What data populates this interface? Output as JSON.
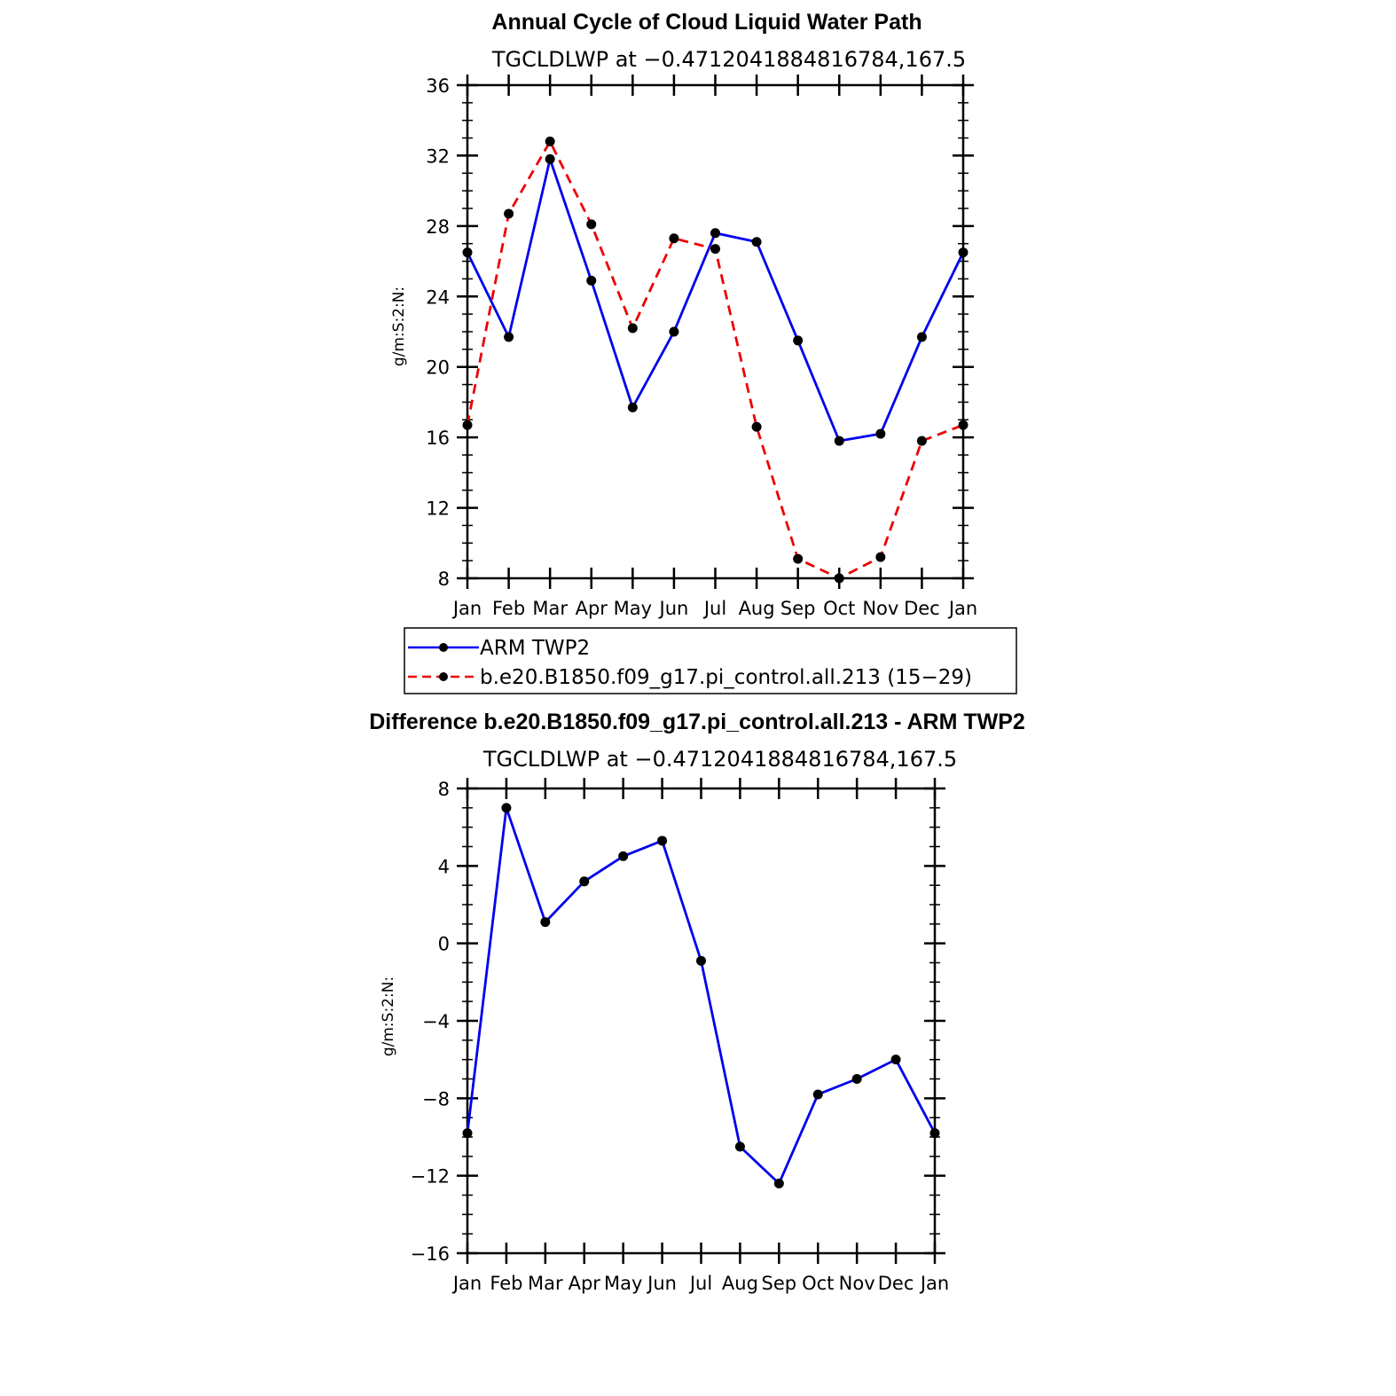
{
  "chart_data": [
    {
      "type": "line",
      "title": "Annual Cycle of Cloud Liquid Water Path",
      "subtitle": "TGCLDLWP at −0.4712041884816784,167.5",
      "ylabel": "g/m:S:2:N:",
      "ylim": [
        8,
        36
      ],
      "yticks": [
        "8",
        "12",
        "16",
        "20",
        "24",
        "28",
        "32",
        "36"
      ],
      "categories": [
        "Jan",
        "Feb",
        "Mar",
        "Apr",
        "May",
        "Jun",
        "Jul",
        "Aug",
        "Sep",
        "Oct",
        "Nov",
        "Dec",
        "Jan"
      ],
      "grid": false,
      "legend_placement": "bottom",
      "series": [
        {
          "name": "ARM TWP2",
          "color": "#0000ee",
          "dash": "solid",
          "values": [
            26.5,
            21.7,
            31.8,
            24.9,
            17.7,
            22.0,
            27.6,
            27.1,
            21.5,
            15.8,
            16.2,
            21.7,
            26.5
          ]
        },
        {
          "name": "b.e20.B1850.f09_g17.pi_control.all.213 (15−29)",
          "color": "#ee0000",
          "dash": "dashed",
          "values": [
            16.7,
            28.7,
            32.8,
            28.1,
            22.2,
            27.3,
            26.7,
            16.6,
            9.1,
            8.0,
            9.2,
            15.8,
            16.7
          ]
        }
      ]
    },
    {
      "type": "line",
      "title": "Difference b.e20.B1850.f09_g17.pi_control.all.213 - ARM TWP2",
      "subtitle": "TGCLDLWP at −0.4712041884816784,167.5",
      "ylabel": "g/m:S:2:N:",
      "ylim": [
        -16,
        8
      ],
      "yticks": [
        "−16",
        "−12",
        "−8",
        "−4",
        "0",
        "4",
        "8"
      ],
      "categories": [
        "Jan",
        "Feb",
        "Mar",
        "Apr",
        "May",
        "Jun",
        "Jul",
        "Aug",
        "Sep",
        "Oct",
        "Nov",
        "Dec",
        "Jan"
      ],
      "grid": false,
      "series": [
        {
          "color": "#0000ee",
          "dash": "solid",
          "values": [
            -9.8,
            7.0,
            1.1,
            3.2,
            4.5,
            5.3,
            -0.9,
            -10.5,
            -12.4,
            -7.8,
            -7.0,
            -6.0,
            -9.8
          ]
        }
      ]
    }
  ]
}
